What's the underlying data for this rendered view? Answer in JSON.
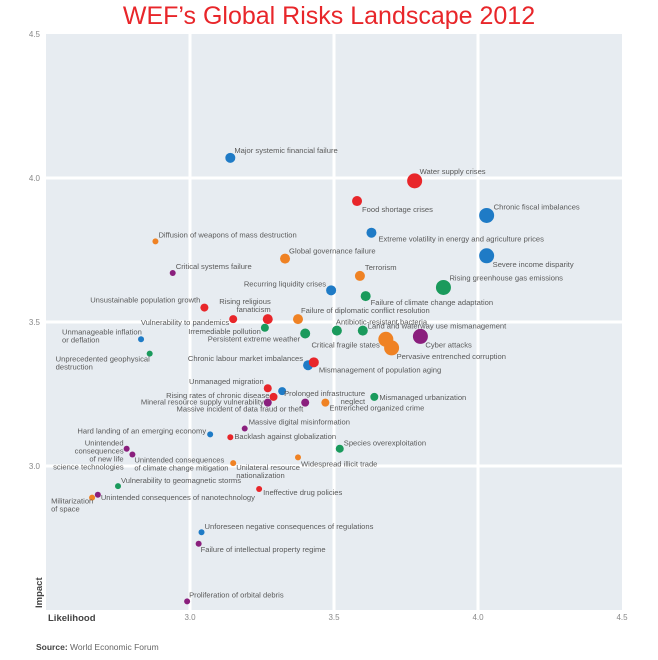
{
  "chart_data": {
    "type": "scatter",
    "title": "WEF’s Global Risks Landscape 2012",
    "xlabel": "Likelihood",
    "ylabel": "Impact",
    "xlim": [
      2.5,
      4.5
    ],
    "ylim": [
      2.5,
      4.5
    ],
    "xticks": [
      "3.0",
      "3.5",
      "4.0",
      "4.5"
    ],
    "yticks": [
      "3.0",
      "3.5",
      "4.0",
      "4.5"
    ],
    "grid": true,
    "colors": {
      "economic": "#1f7bc6",
      "environmental": "#1a9a5c",
      "geopolitical": "#ef8224",
      "societal": "#e8262a",
      "technological": "#8a1f7d"
    },
    "points": [
      {
        "label": "Major systemic financial failure",
        "x": 3.14,
        "y": 4.07,
        "cat": "economic",
        "size": "m"
      },
      {
        "label": "Water supply crises",
        "x": 3.78,
        "y": 3.99,
        "cat": "societal",
        "size": "l"
      },
      {
        "label": "Food shortage crises",
        "x": 3.58,
        "y": 3.92,
        "cat": "societal",
        "size": "m"
      },
      {
        "label": "Chronic fiscal imbalances",
        "x": 4.03,
        "y": 3.87,
        "cat": "economic",
        "size": "l"
      },
      {
        "label": "Extreme volatility in energy and agriculture prices",
        "x": 3.63,
        "y": 3.81,
        "cat": "economic",
        "size": "m"
      },
      {
        "label": "Severe income disparity",
        "x": 4.03,
        "y": 3.73,
        "cat": "economic",
        "size": "l"
      },
      {
        "label": "Diffusion of weapons of mass destruction",
        "x": 2.88,
        "y": 3.78,
        "cat": "geopolitical",
        "size": "s"
      },
      {
        "label": "Global governance failure",
        "x": 3.33,
        "y": 3.72,
        "cat": "geopolitical",
        "size": "m"
      },
      {
        "label": "Terrorism",
        "x": 3.59,
        "y": 3.66,
        "cat": "geopolitical",
        "size": "m"
      },
      {
        "label": "Critical systems failure",
        "x": 2.94,
        "y": 3.67,
        "cat": "technological",
        "size": "s"
      },
      {
        "label": "Rising greenhouse gas emissions",
        "x": 3.88,
        "y": 3.62,
        "cat": "environmental",
        "size": "l"
      },
      {
        "label": "Recurring liquidity crises",
        "x": 3.49,
        "y": 3.61,
        "cat": "economic",
        "size": "m"
      },
      {
        "label": "Failure of climate change adaptation",
        "x": 3.61,
        "y": 3.59,
        "cat": "environmental",
        "size": "m"
      },
      {
        "label": "Unsustainable population growth",
        "x": 3.05,
        "y": 3.55,
        "cat": "societal",
        "size": "sm"
      },
      {
        "label": "Rising religious\nfanaticism",
        "x": 3.27,
        "y": 3.51,
        "cat": "societal",
        "size": "m"
      },
      {
        "label": "Vulnerability to pandemics",
        "x": 3.15,
        "y": 3.51,
        "cat": "societal",
        "size": "sm"
      },
      {
        "label": "Failure of diplomatic conflict resolution",
        "x": 3.375,
        "y": 3.51,
        "cat": "geopolitical",
        "size": "m"
      },
      {
        "label": "Irremediable pollution",
        "x": 3.26,
        "y": 3.48,
        "cat": "environmental",
        "size": "sm"
      },
      {
        "label": "Persistent extreme weather",
        "x": 3.4,
        "y": 3.46,
        "cat": "environmental",
        "size": "m"
      },
      {
        "label": "Antibiotic-resistant bacteria",
        "x": 3.51,
        "y": 3.47,
        "cat": "environmental",
        "size": "m"
      },
      {
        "label": "Land and waterway use mismanagement",
        "x": 3.6,
        "y": 3.47,
        "cat": "environmental",
        "size": "m"
      },
      {
        "label": "Critical fragile states",
        "x": 3.68,
        "y": 3.44,
        "cat": "geopolitical",
        "size": "l"
      },
      {
        "label": "Pervasive entrenched corruption",
        "x": 3.7,
        "y": 3.41,
        "cat": "geopolitical",
        "size": "l"
      },
      {
        "label": "Cyber attacks",
        "x": 3.8,
        "y": 3.45,
        "cat": "technological",
        "size": "l"
      },
      {
        "label": "Unmanageable inflation\nor deflation",
        "x": 2.83,
        "y": 3.44,
        "cat": "economic",
        "size": "s"
      },
      {
        "label": "Unprecedented geophysical\ndestruction",
        "x": 2.86,
        "y": 3.39,
        "cat": "environmental",
        "size": "s"
      },
      {
        "label": "Chronic labour market imbalances",
        "x": 3.41,
        "y": 3.35,
        "cat": "economic",
        "size": "m"
      },
      {
        "label": "Mismanagement of population aging",
        "x": 3.43,
        "y": 3.36,
        "cat": "societal",
        "size": "m"
      },
      {
        "label": "Unmanaged migration",
        "x": 3.27,
        "y": 3.27,
        "cat": "societal",
        "size": "sm"
      },
      {
        "label": "Prolonged infrastructure\nneglect",
        "x": 3.32,
        "y": 3.26,
        "cat": "economic",
        "size": "sm"
      },
      {
        "label": "Rising rates of chronic disease",
        "x": 3.29,
        "y": 3.24,
        "cat": "societal",
        "size": "sm"
      },
      {
        "label": "Mineral resource supply vulnerability",
        "x": 3.27,
        "y": 3.22,
        "cat": "technological",
        "size": "sm"
      },
      {
        "label": "Massive incident of data fraud or theft",
        "x": 3.4,
        "y": 3.22,
        "cat": "technological",
        "size": "sm"
      },
      {
        "label": "Entrenched organized crime",
        "x": 3.47,
        "y": 3.22,
        "cat": "geopolitical",
        "size": "sm"
      },
      {
        "label": "Mismanaged urbanization",
        "x": 3.64,
        "y": 3.24,
        "cat": "environmental",
        "size": "sm"
      },
      {
        "label": "Massive digital misinformation",
        "x": 3.19,
        "y": 3.13,
        "cat": "technological",
        "size": "s"
      },
      {
        "label": "Hard landing of an emerging economy",
        "x": 3.07,
        "y": 3.11,
        "cat": "economic",
        "size": "s"
      },
      {
        "label": "Backlash against globalization",
        "x": 3.14,
        "y": 3.1,
        "cat": "societal",
        "size": "s"
      },
      {
        "label": "Species overexploitation",
        "x": 3.52,
        "y": 3.06,
        "cat": "environmental",
        "size": "sm"
      },
      {
        "label": "Widespread illicit trade",
        "x": 3.375,
        "y": 3.03,
        "cat": "geopolitical",
        "size": "s"
      },
      {
        "label": "Unilateral resource\nnationalization",
        "x": 3.15,
        "y": 3.01,
        "cat": "geopolitical",
        "size": "s"
      },
      {
        "label": "Unintended\nconsequences\nof new life\nscience technologies",
        "x": 2.78,
        "y": 3.06,
        "cat": "technological",
        "size": "s"
      },
      {
        "label": "Unintended consequences\nof climate change mitigation",
        "x": 2.8,
        "y": 3.04,
        "cat": "technological",
        "size": "s"
      },
      {
        "label": "Vulnerability to geomagnetic storms",
        "x": 2.75,
        "y": 2.93,
        "cat": "environmental",
        "size": "s"
      },
      {
        "label": "Unintended consequences of nanotechnology",
        "x": 2.68,
        "y": 2.9,
        "cat": "technological",
        "size": "s"
      },
      {
        "label": "Militarization\nof space",
        "x": 2.66,
        "y": 2.89,
        "cat": "geopolitical",
        "size": "s"
      },
      {
        "label": "Ineffective drug policies",
        "x": 3.24,
        "y": 2.92,
        "cat": "societal",
        "size": "s"
      },
      {
        "label": "Unforeseen negative consequences of regulations",
        "x": 3.04,
        "y": 2.77,
        "cat": "economic",
        "size": "s"
      },
      {
        "label": "Failure of intellectual property regime",
        "x": 3.03,
        "y": 2.73,
        "cat": "technological",
        "size": "s"
      },
      {
        "label": "Proliferation of orbital debris",
        "x": 2.99,
        "y": 2.53,
        "cat": "technological",
        "size": "s"
      }
    ]
  },
  "source": {
    "label": "Source:",
    "text": "World Economic Forum"
  }
}
